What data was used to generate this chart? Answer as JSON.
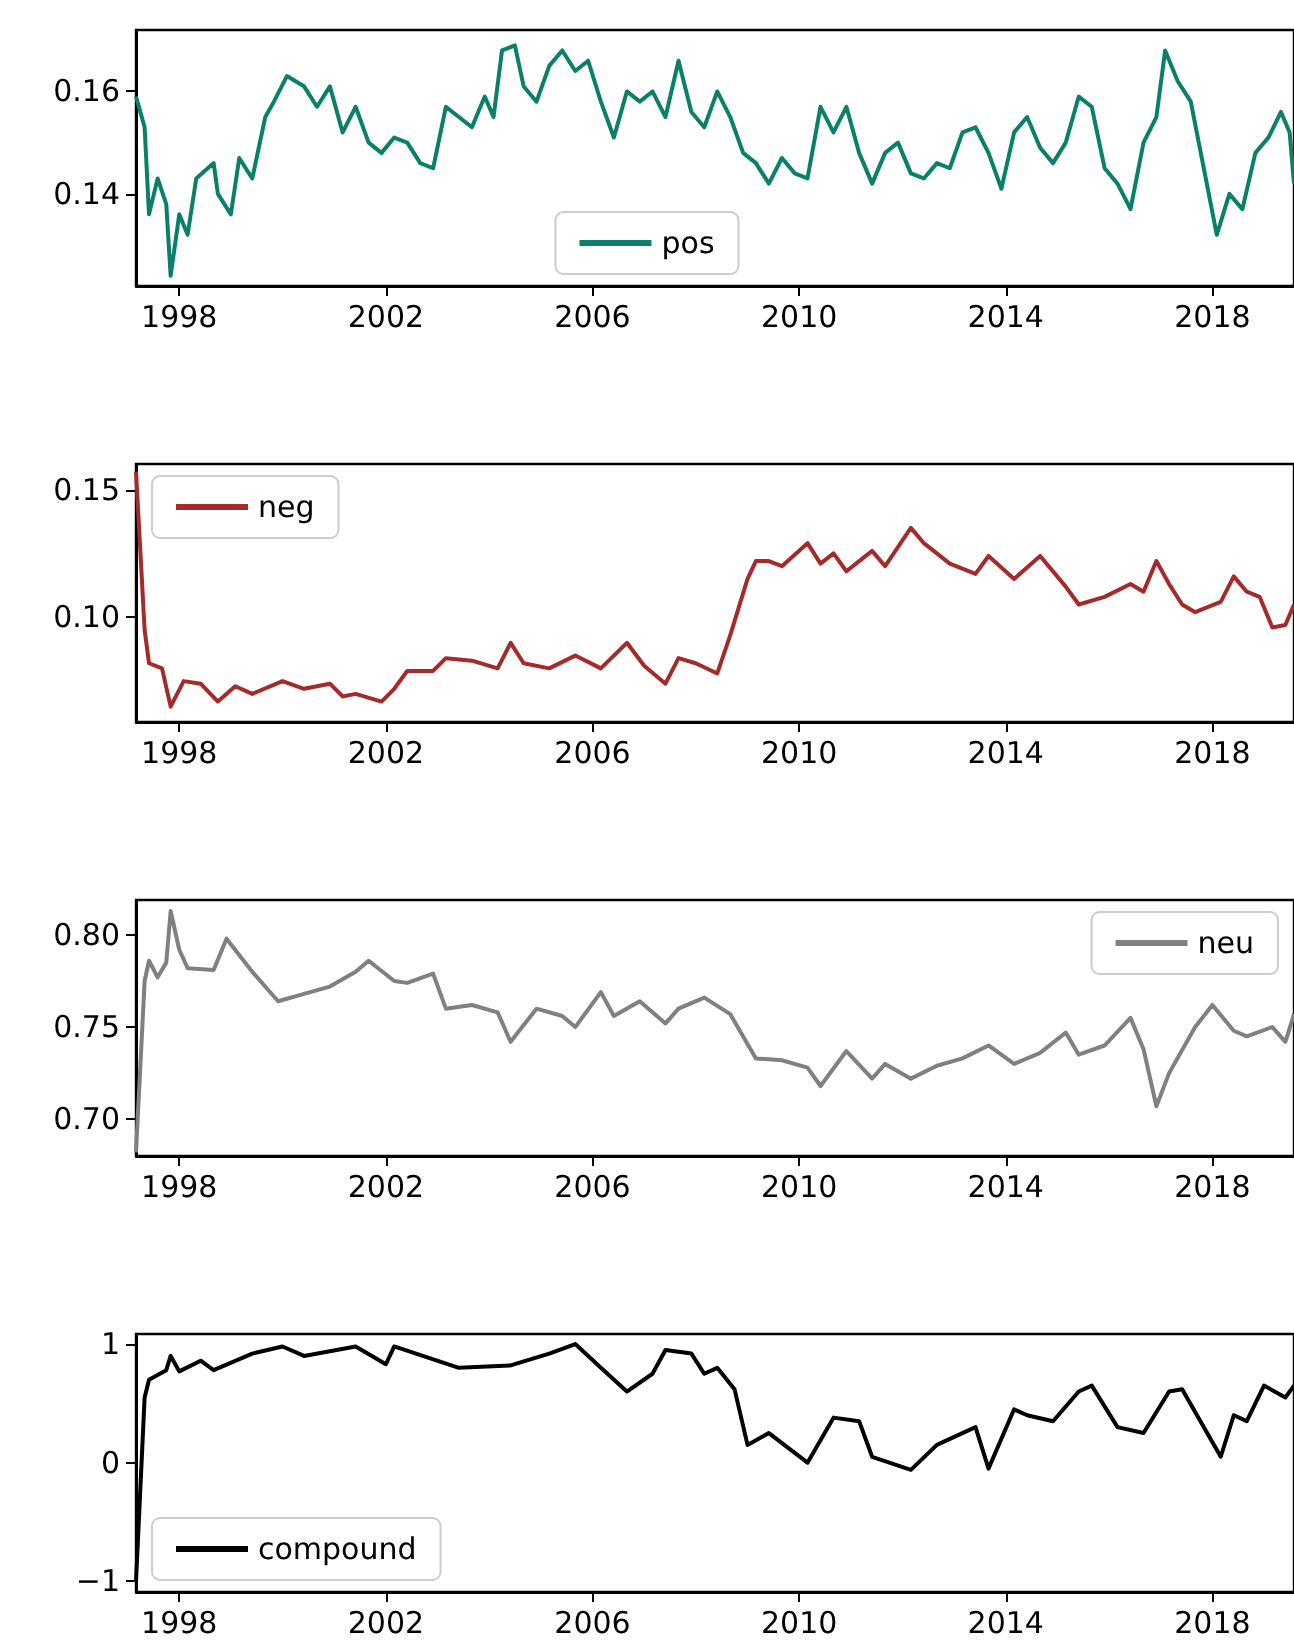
{
  "chart_data": [
    {
      "type": "line",
      "legend": "bottom",
      "xlim": [
        "1997-03",
        "2019-08"
      ],
      "xticks": [
        "1998",
        "2002",
        "2006",
        "2010",
        "2014",
        "2018"
      ],
      "ylim": [
        0.122,
        0.172
      ],
      "yticks": [
        0.14,
        0.16
      ],
      "x": [
        "1997-03",
        "1997-05",
        "1997-06",
        "1997-08",
        "1997-10",
        "1997-11",
        "1998-01",
        "1998-03",
        "1998-05",
        "1998-09",
        "1998-10",
        "1999-01",
        "1999-03",
        "1999-06",
        "1999-09",
        "1999-11",
        "2000-02",
        "2000-06",
        "2000-09",
        "2000-12",
        "2001-03",
        "2001-06",
        "2001-09",
        "2001-12",
        "2002-03",
        "2002-06",
        "2002-09",
        "2002-12",
        "2003-03",
        "2003-06",
        "2003-09",
        "2003-12",
        "2004-02",
        "2004-04",
        "2004-07",
        "2004-09",
        "2004-12",
        "2005-03",
        "2005-06",
        "2005-09",
        "2005-12",
        "2006-03",
        "2006-06",
        "2006-09",
        "2006-12",
        "2007-03",
        "2007-06",
        "2007-09",
        "2007-12",
        "2008-03",
        "2008-06",
        "2008-09",
        "2008-12",
        "2009-03",
        "2009-06",
        "2009-09",
        "2009-12",
        "2010-03",
        "2010-06",
        "2010-09",
        "2010-12",
        "2011-03",
        "2011-06",
        "2011-09",
        "2011-12",
        "2012-03",
        "2012-06",
        "2012-09",
        "2012-12",
        "2013-03",
        "2013-06",
        "2013-09",
        "2013-12",
        "2014-03",
        "2014-06",
        "2014-09",
        "2014-12",
        "2015-03",
        "2015-06",
        "2015-09",
        "2015-12",
        "2016-03",
        "2016-06",
        "2016-09",
        "2016-12",
        "2017-02",
        "2017-05",
        "2017-08",
        "2017-11",
        "2018-02",
        "2018-05",
        "2018-08",
        "2018-11",
        "2019-02",
        "2019-05",
        "2019-07",
        "2019-08"
      ],
      "series": [
        {
          "name": "pos",
          "color": "#0b8068",
          "values": [
            0.159,
            0.153,
            0.136,
            0.143,
            0.138,
            0.124,
            0.136,
            0.132,
            0.143,
            0.146,
            0.14,
            0.136,
            0.147,
            0.143,
            0.155,
            0.158,
            0.163,
            0.161,
            0.157,
            0.161,
            0.152,
            0.157,
            0.15,
            0.148,
            0.151,
            0.15,
            0.146,
            0.145,
            0.157,
            0.155,
            0.153,
            0.159,
            0.155,
            0.168,
            0.169,
            0.161,
            0.158,
            0.165,
            0.168,
            0.164,
            0.166,
            0.158,
            0.151,
            0.16,
            0.158,
            0.16,
            0.155,
            0.166,
            0.156,
            0.153,
            0.16,
            0.155,
            0.148,
            0.146,
            0.142,
            0.147,
            0.144,
            0.143,
            0.157,
            0.152,
            0.157,
            0.148,
            0.142,
            0.148,
            0.15,
            0.144,
            0.143,
            0.146,
            0.145,
            0.152,
            0.153,
            0.148,
            0.141,
            0.152,
            0.155,
            0.149,
            0.146,
            0.15,
            0.159,
            0.157,
            0.145,
            0.142,
            0.137,
            0.15,
            0.155,
            0.168,
            0.162,
            0.158,
            0.145,
            0.132,
            0.14,
            0.137,
            0.148,
            0.151,
            0.156,
            0.152,
            0.142
          ]
        }
      ]
    },
    {
      "type": "line",
      "legend": "top left",
      "xlim": [
        "1997-03",
        "2019-08"
      ],
      "xticks": [
        "1998",
        "2002",
        "2006",
        "2010",
        "2014",
        "2018"
      ],
      "ylim": [
        0.059,
        0.16
      ],
      "yticks": [
        {
          "value": 0.1,
          "label": "0.10"
        },
        0.15
      ],
      "x": [
        "1997-03",
        "1997-05",
        "1997-06",
        "1997-09",
        "1997-11",
        "1998-02",
        "1998-06",
        "1998-10",
        "1999-02",
        "1999-06",
        "2000-01",
        "2000-06",
        "2000-12",
        "2001-03",
        "2001-06",
        "2001-12",
        "2002-03",
        "2002-06",
        "2002-12",
        "2003-03",
        "2003-09",
        "2004-03",
        "2004-06",
        "2004-09",
        "2005-03",
        "2005-09",
        "2006-03",
        "2006-09",
        "2007-01",
        "2007-06",
        "2007-09",
        "2008-01",
        "2008-06",
        "2008-09",
        "2009-01",
        "2009-03",
        "2009-06",
        "2009-09",
        "2010-03",
        "2010-06",
        "2010-09",
        "2010-12",
        "2011-06",
        "2011-09",
        "2012-03",
        "2012-06",
        "2012-12",
        "2013-06",
        "2013-09",
        "2014-03",
        "2014-09",
        "2015-03",
        "2015-06",
        "2015-12",
        "2016-06",
        "2016-09",
        "2016-12",
        "2017-03",
        "2017-06",
        "2017-09",
        "2018-03",
        "2018-06",
        "2018-09",
        "2018-12",
        "2019-03",
        "2019-06",
        "2019-08"
      ],
      "series": [
        {
          "name": "neg",
          "color": "#a52a2a",
          "values": [
            0.157,
            0.095,
            0.082,
            0.08,
            0.065,
            0.075,
            0.074,
            0.067,
            0.073,
            0.07,
            0.075,
            0.072,
            0.074,
            0.069,
            0.07,
            0.067,
            0.072,
            0.079,
            0.079,
            0.084,
            0.083,
            0.08,
            0.09,
            0.082,
            0.08,
            0.085,
            0.08,
            0.09,
            0.081,
            0.074,
            0.084,
            0.082,
            0.078,
            0.093,
            0.115,
            0.122,
            0.122,
            0.12,
            0.129,
            0.121,
            0.125,
            0.118,
            0.126,
            0.12,
            0.135,
            0.129,
            0.121,
            0.117,
            0.124,
            0.115,
            0.124,
            0.112,
            0.105,
            0.108,
            0.113,
            0.11,
            0.122,
            0.113,
            0.105,
            0.102,
            0.106,
            0.116,
            0.11,
            0.108,
            0.096,
            0.097,
            0.105
          ]
        }
      ]
    },
    {
      "type": "line",
      "legend": "top right",
      "xlim": [
        "1997-03",
        "2019-08"
      ],
      "xticks": [
        "1998",
        "2002",
        "2006",
        "2010",
        "2014",
        "2018"
      ],
      "ylim": [
        0.68,
        0.819
      ],
      "yticks": [
        {
          "value": 0.7,
          "label": "0.70"
        },
        0.75,
        {
          "value": 0.8,
          "label": "0.80"
        }
      ],
      "x": [
        "1997-03",
        "1997-05",
        "1997-06",
        "1997-08",
        "1997-10",
        "1997-11",
        "1998-01",
        "1998-03",
        "1998-09",
        "1998-12",
        "1999-06",
        "1999-12",
        "2000-06",
        "2000-12",
        "2001-06",
        "2001-09",
        "2002-03",
        "2002-06",
        "2002-12",
        "2003-03",
        "2003-09",
        "2004-03",
        "2004-06",
        "2004-12",
        "2005-06",
        "2005-09",
        "2006-03",
        "2006-06",
        "2006-12",
        "2007-06",
        "2007-09",
        "2008-03",
        "2008-09",
        "2009-03",
        "2009-09",
        "2010-03",
        "2010-06",
        "2010-12",
        "2011-06",
        "2011-09",
        "2012-03",
        "2012-09",
        "2013-03",
        "2013-09",
        "2014-03",
        "2014-09",
        "2015-03",
        "2015-06",
        "2015-12",
        "2016-06",
        "2016-09",
        "2016-12",
        "2017-03",
        "2017-09",
        "2018-01",
        "2018-06",
        "2018-09",
        "2019-03",
        "2019-06",
        "2019-08"
      ],
      "series": [
        {
          "name": "neu",
          "color": "#808080",
          "values": [
            0.682,
            0.775,
            0.786,
            0.777,
            0.785,
            0.813,
            0.792,
            0.782,
            0.781,
            0.798,
            0.78,
            0.764,
            0.768,
            0.772,
            0.78,
            0.786,
            0.775,
            0.774,
            0.779,
            0.76,
            0.762,
            0.758,
            0.742,
            0.76,
            0.756,
            0.75,
            0.769,
            0.756,
            0.764,
            0.752,
            0.76,
            0.766,
            0.757,
            0.733,
            0.732,
            0.728,
            0.718,
            0.737,
            0.722,
            0.73,
            0.722,
            0.729,
            0.733,
            0.74,
            0.73,
            0.736,
            0.747,
            0.735,
            0.74,
            0.755,
            0.738,
            0.707,
            0.725,
            0.75,
            0.762,
            0.748,
            0.745,
            0.75,
            0.742,
            0.757
          ]
        }
      ]
    },
    {
      "type": "line",
      "legend": "bottom left",
      "xlim": [
        "1997-03",
        "2019-08"
      ],
      "xticks": [
        "1998",
        "2002",
        "2006",
        "2010",
        "2014",
        "2018"
      ],
      "ylim": [
        -1.09,
        1.085
      ],
      "yticks": [
        {
          "value": -1,
          "label": "−1"
        },
        0,
        1
      ],
      "x": [
        "1997-03",
        "1997-05",
        "1997-06",
        "1997-10",
        "1997-11",
        "1998-01",
        "1998-06",
        "1998-09",
        "1999-06",
        "2000-01",
        "2000-06",
        "2001-06",
        "2002-01",
        "2002-03",
        "2003-06",
        "2004-06",
        "2005-03",
        "2005-09",
        "2006-03",
        "2006-09",
        "2007-03",
        "2007-06",
        "2007-12",
        "2008-03",
        "2008-06",
        "2008-10",
        "2009-01",
        "2009-06",
        "2010-03",
        "2010-09",
        "2011-03",
        "2011-06",
        "2012-03",
        "2012-09",
        "2013-06",
        "2013-09",
        "2014-03",
        "2014-06",
        "2014-12",
        "2015-06",
        "2015-09",
        "2016-03",
        "2016-09",
        "2017-03",
        "2017-06",
        "2018-03",
        "2018-06",
        "2018-09",
        "2019-01",
        "2019-06",
        "2019-08"
      ],
      "series": [
        {
          "name": "compound",
          "color": "#000000",
          "values": [
            -1.0,
            0.55,
            0.7,
            0.78,
            0.9,
            0.77,
            0.86,
            0.78,
            0.92,
            0.98,
            0.9,
            0.98,
            0.83,
            0.98,
            0.8,
            0.82,
            0.92,
            1.0,
            0.8,
            0.6,
            0.75,
            0.95,
            0.92,
            0.75,
            0.8,
            0.62,
            0.15,
            0.25,
            0.0,
            0.38,
            0.35,
            0.05,
            -0.06,
            0.15,
            0.3,
            -0.05,
            0.45,
            0.4,
            0.35,
            0.6,
            0.65,
            0.3,
            0.25,
            0.6,
            0.62,
            0.05,
            0.4,
            0.35,
            0.65,
            0.55,
            0.65
          ]
        }
      ]
    }
  ]
}
